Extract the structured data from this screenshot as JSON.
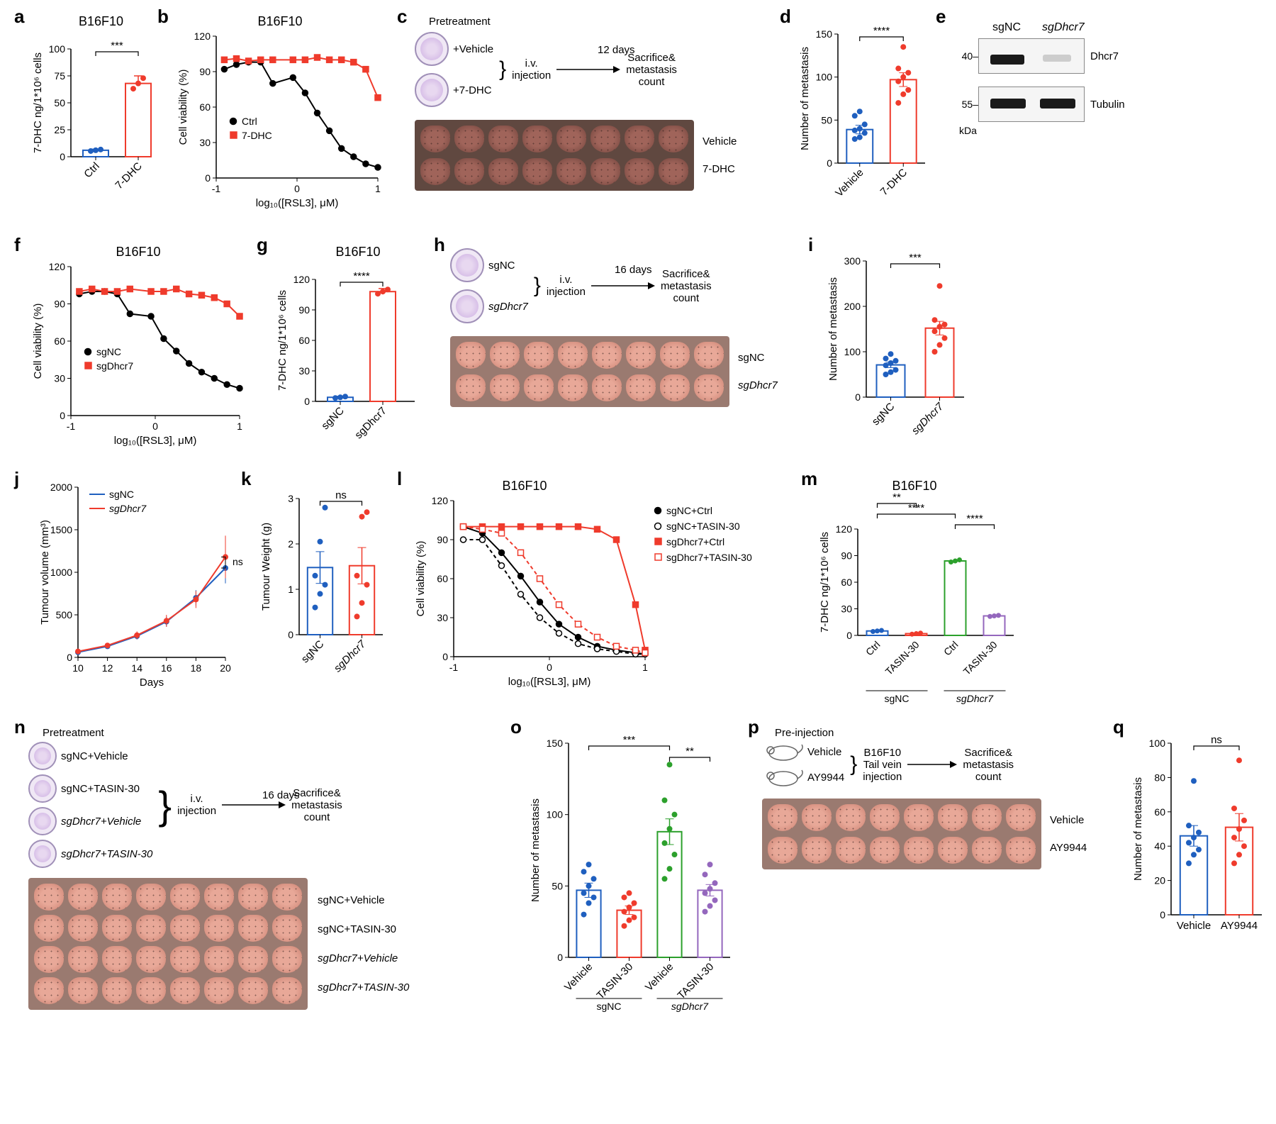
{
  "panels": {
    "a": {
      "label": "a",
      "title": "B16F10",
      "ylabel": "7-DHC ng/1*10⁶ cells",
      "xticks": [
        "Ctrl",
        "7-DHC"
      ],
      "values": [
        6,
        68
      ],
      "sem": [
        1,
        7
      ],
      "colors": [
        "#1f5fbf",
        "#ef3b2c"
      ],
      "ylim": [
        0,
        100
      ],
      "ystep": 25,
      "sig": "***"
    },
    "b": {
      "label": "b",
      "title": "B16F10",
      "ylabel": "Cell viability (%)",
      "xlabel": "log₁₀([RSL3], μM)",
      "xlim": [
        -1,
        1
      ],
      "xstep": 1,
      "ylim": [
        0,
        120
      ],
      "ystep": 30,
      "series": [
        {
          "name": "Ctrl",
          "color": "#000000",
          "marker": "circle",
          "x": [
            -0.9,
            -0.75,
            -0.6,
            -0.45,
            -0.3,
            -0.05,
            0.1,
            0.25,
            0.4,
            0.55,
            0.7,
            0.85,
            1.0
          ],
          "y": [
            92,
            96,
            98,
            98,
            80,
            85,
            72,
            55,
            40,
            25,
            18,
            12,
            9
          ]
        },
        {
          "name": "7-DHC",
          "color": "#ef3b2c",
          "marker": "square",
          "x": [
            -0.9,
            -0.75,
            -0.6,
            -0.45,
            -0.3,
            -0.05,
            0.1,
            0.25,
            0.4,
            0.55,
            0.7,
            0.85,
            1.0
          ],
          "y": [
            100,
            101,
            99,
            100,
            100,
            100,
            100,
            102,
            100,
            100,
            98,
            92,
            68
          ]
        }
      ]
    },
    "c": {
      "label": "c",
      "heading": "Pretreatment",
      "labels": [
        "+Vehicle",
        "+7-DHC"
      ],
      "flow": [
        "i.v.\ninjection",
        "12 days",
        "Sacrifice&\nmetastasis\ncount"
      ],
      "photo_rows": [
        "Vehicle",
        "7-DHC"
      ],
      "n": 8
    },
    "d": {
      "label": "d",
      "ylabel": "Number of metastasis",
      "xticks": [
        "Vehicle",
        "7-DHC"
      ],
      "colors": [
        "#1f5fbf",
        "#ef3b2c"
      ],
      "ylim": [
        0,
        150
      ],
      "ystep": 50,
      "sig": "****",
      "points": [
        [
          28,
          30,
          35,
          38,
          40,
          45,
          55,
          60
        ],
        [
          70,
          80,
          85,
          95,
          100,
          105,
          110,
          135
        ]
      ],
      "means": [
        39,
        97
      ],
      "sems": [
        5,
        8
      ]
    },
    "e": {
      "label": "e",
      "lanes": [
        "sgNC",
        "sgDhcr7"
      ],
      "rows": [
        {
          "name": "Dhcr7",
          "mw": "40–"
        },
        {
          "name": "Tubulin",
          "mw": "55–"
        }
      ],
      "kda": "kDa"
    },
    "f": {
      "label": "f",
      "title": "B16F10",
      "ylabel": "Cell viability (%)",
      "xlabel": "log₁₀([RSL3], μM)",
      "xlim": [
        -1,
        1
      ],
      "xstep": 1,
      "ylim": [
        0,
        120
      ],
      "ystep": 30,
      "series": [
        {
          "name": "sgNC",
          "color": "#000000",
          "marker": "circle",
          "x": [
            -0.9,
            -0.75,
            -0.6,
            -0.45,
            -0.3,
            -0.05,
            0.1,
            0.25,
            0.4,
            0.55,
            0.7,
            0.85,
            1.0
          ],
          "y": [
            98,
            100,
            100,
            98,
            82,
            80,
            62,
            52,
            42,
            35,
            30,
            25,
            22
          ]
        },
        {
          "name": "sgDhcr7",
          "color": "#ef3b2c",
          "marker": "square",
          "x": [
            -0.9,
            -0.75,
            -0.6,
            -0.45,
            -0.3,
            -0.05,
            0.1,
            0.25,
            0.4,
            0.55,
            0.7,
            0.85,
            1.0
          ],
          "y": [
            100,
            102,
            100,
            100,
            102,
            100,
            100,
            102,
            98,
            97,
            95,
            90,
            80
          ]
        }
      ]
    },
    "g": {
      "label": "g",
      "title": "B16F10",
      "ylabel": "7-DHC ng/1*10⁶ cells",
      "xticks": [
        "sgNC",
        "sgDhcr7"
      ],
      "values": [
        4,
        108
      ],
      "sem": [
        1,
        3
      ],
      "colors": [
        "#1f5fbf",
        "#ef3b2c"
      ],
      "ylim": [
        0,
        120
      ],
      "ystep": 30,
      "sig": "****"
    },
    "h": {
      "label": "h",
      "labels": [
        "sgNC",
        "sgDhcr7"
      ],
      "flow": [
        "i.v.\ninjection",
        "16 days",
        "Sacrifice&\nmetastasis\ncount"
      ],
      "photo_rows": [
        "sgNC",
        "sgDhcr7"
      ],
      "n": 8
    },
    "i": {
      "label": "i",
      "ylabel": "Number of metastasis",
      "xticks": [
        "sgNC",
        "sgDhcr7"
      ],
      "colors": [
        "#1f5fbf",
        "#ef3b2c"
      ],
      "ylim": [
        0,
        300
      ],
      "ystep": 100,
      "sig": "***",
      "points": [
        [
          50,
          55,
          60,
          70,
          75,
          80,
          85,
          95
        ],
        [
          100,
          115,
          130,
          145,
          155,
          160,
          170,
          245
        ]
      ],
      "means": [
        71,
        152
      ],
      "sems": [
        6,
        15
      ]
    },
    "j": {
      "label": "j",
      "ylabel": "Tumour volume (mm³)",
      "xlabel": "Days",
      "xlim": [
        10,
        20
      ],
      "xstep": 2,
      "ylim": [
        0,
        2000
      ],
      "ystep": 500,
      "sig": "ns",
      "series": [
        {
          "name": "sgNC",
          "color": "#1f5fbf",
          "x": [
            10,
            12,
            14,
            16,
            18,
            20
          ],
          "y": [
            60,
            130,
            250,
            420,
            700,
            1050
          ],
          "sem": [
            10,
            20,
            40,
            60,
            90,
            180
          ]
        },
        {
          "name": "sgDhcr7",
          "color": "#ef3b2c",
          "x": [
            10,
            12,
            14,
            16,
            18,
            20
          ],
          "y": [
            70,
            140,
            260,
            430,
            680,
            1180
          ],
          "sem": [
            10,
            25,
            45,
            70,
            100,
            250
          ]
        }
      ]
    },
    "k": {
      "label": "k",
      "ylabel": "Tumour Weight (g)",
      "xticks": [
        "sgNC",
        "sgDhcr7"
      ],
      "colors": [
        "#1f5fbf",
        "#ef3b2c"
      ],
      "ylim": [
        0,
        3
      ],
      "ystep": 1,
      "sig": "ns",
      "points": [
        [
          0.6,
          0.9,
          1.1,
          1.3,
          2.05,
          2.8
        ],
        [
          0.4,
          0.7,
          1.1,
          1.3,
          2.6,
          2.7
        ]
      ],
      "means": [
        1.48,
        1.52
      ],
      "sems": [
        0.35,
        0.4
      ]
    },
    "l": {
      "label": "l",
      "title": "B16F10",
      "ylabel": "Cell viability (%)",
      "xlabel": "log₁₀([RSL3], μM)",
      "xlim": [
        -1,
        1
      ],
      "xstep": 1,
      "ylim": [
        0,
        120
      ],
      "ystep": 30,
      "series": [
        {
          "name": "sgNC+Ctrl",
          "color": "#000000",
          "marker": "circle",
          "fill": true,
          "dash": false,
          "x": [
            -0.9,
            -0.7,
            -0.5,
            -0.3,
            -0.1,
            0.1,
            0.3,
            0.5,
            0.7,
            0.9,
            1.0
          ],
          "y": [
            100,
            95,
            80,
            62,
            42,
            25,
            15,
            8,
            5,
            3,
            2
          ]
        },
        {
          "name": "sgNC+TASIN-30",
          "color": "#000000",
          "marker": "circle",
          "fill": false,
          "dash": true,
          "x": [
            -0.9,
            -0.7,
            -0.5,
            -0.3,
            -0.1,
            0.1,
            0.3,
            0.5,
            0.7,
            0.9,
            1.0
          ],
          "y": [
            90,
            90,
            70,
            48,
            30,
            18,
            10,
            6,
            4,
            2,
            2
          ]
        },
        {
          "name": "sgDhcr7+Ctrl",
          "color": "#ef3b2c",
          "marker": "square",
          "fill": true,
          "dash": false,
          "x": [
            -0.9,
            -0.7,
            -0.5,
            -0.3,
            -0.1,
            0.1,
            0.3,
            0.5,
            0.7,
            0.9,
            1.0
          ],
          "y": [
            100,
            100,
            100,
            100,
            100,
            100,
            100,
            98,
            90,
            40,
            5
          ]
        },
        {
          "name": "sgDhcr7+TASIN-30",
          "color": "#ef3b2c",
          "marker": "square",
          "fill": false,
          "dash": true,
          "x": [
            -0.9,
            -0.7,
            -0.5,
            -0.3,
            -0.1,
            0.1,
            0.3,
            0.5,
            0.7,
            0.9,
            1.0
          ],
          "y": [
            100,
            98,
            95,
            80,
            60,
            40,
            25,
            15,
            8,
            5,
            3
          ]
        }
      ]
    },
    "m": {
      "label": "m",
      "title": "B16F10",
      "ylabel": "7-DHC ng/1*10⁶ cells",
      "group_labels": [
        "sgNC",
        "sgDhcr7"
      ],
      "xticks": [
        "Ctrl",
        "TASIN-30",
        "Ctrl",
        "TASIN-30"
      ],
      "values": [
        5,
        2,
        84,
        22
      ],
      "sem": [
        1,
        1,
        2,
        1
      ],
      "colors": [
        "#1f5fbf",
        "#ef3b2c",
        "#2ca02c",
        "#9467bd"
      ],
      "ylim": [
        0,
        120
      ],
      "ystep": 30,
      "sigs": [
        {
          "i": 0,
          "j": 1,
          "t": "**"
        },
        {
          "i": 0,
          "j": 2,
          "t": "****"
        },
        {
          "i": 2,
          "j": 3,
          "t": "****"
        }
      ]
    },
    "n": {
      "label": "n",
      "heading": "Pretreatment",
      "labels": [
        "sgNC+Vehicle",
        "sgNC+TASIN-30",
        "sgDhcr7+Vehicle",
        "sgDhcr7+TASIN-30"
      ],
      "flow": [
        "i.v.\ninjection",
        "16 days",
        "Sacrifice&\nmetastasis\ncount"
      ],
      "photo_rows": [
        "sgNC+Vehicle",
        "sgNC+TASIN-30",
        "sgDhcr7+Vehicle",
        "sgDhcr7+TASIN-30"
      ],
      "n": 8
    },
    "o": {
      "label": "o",
      "ylabel": "Number of metastasis",
      "group_labels": [
        "sgNC",
        "sgDhcr7"
      ],
      "xticks": [
        "Vehicle",
        "TASIN-30",
        "Vehicle",
        "TASIN-30"
      ],
      "colors": [
        "#1f5fbf",
        "#ef3b2c",
        "#2ca02c",
        "#9467bd"
      ],
      "ylim": [
        0,
        150
      ],
      "ystep": 50,
      "sigs": [
        {
          "i": 0,
          "j": 2,
          "t": "***"
        },
        {
          "i": 2,
          "j": 3,
          "t": "**"
        }
      ],
      "points": [
        [
          30,
          38,
          42,
          45,
          50,
          55,
          60,
          65
        ],
        [
          22,
          26,
          28,
          32,
          35,
          38,
          42,
          45
        ],
        [
          55,
          62,
          72,
          80,
          90,
          100,
          110,
          135
        ],
        [
          32,
          36,
          40,
          45,
          48,
          52,
          58,
          65
        ]
      ],
      "means": [
        47,
        33,
        88,
        47
      ],
      "sems": [
        5,
        3,
        9,
        4
      ]
    },
    "p": {
      "label": "p",
      "heading": "Pre-injection",
      "labels": [
        "Vehicle",
        "AY9944"
      ],
      "flow": [
        "B16F10\nTail vein\ninjection",
        "Sacrifice&\nmetastasis\ncount"
      ],
      "photo_rows": [
        "Vehicle",
        "AY9944"
      ],
      "n": 8
    },
    "q": {
      "label": "q",
      "ylabel": "Number of metastasis",
      "xticks": [
        "Vehicle",
        "AY9944"
      ],
      "colors": [
        "#1f5fbf",
        "#ef3b2c"
      ],
      "ylim": [
        0,
        100
      ],
      "ystep": 20,
      "sig": "ns",
      "points": [
        [
          30,
          35,
          38,
          42,
          45,
          48,
          52,
          78
        ],
        [
          30,
          35,
          40,
          45,
          50,
          55,
          62,
          90
        ]
      ],
      "means": [
        46,
        51
      ],
      "sems": [
        6,
        8
      ]
    }
  }
}
